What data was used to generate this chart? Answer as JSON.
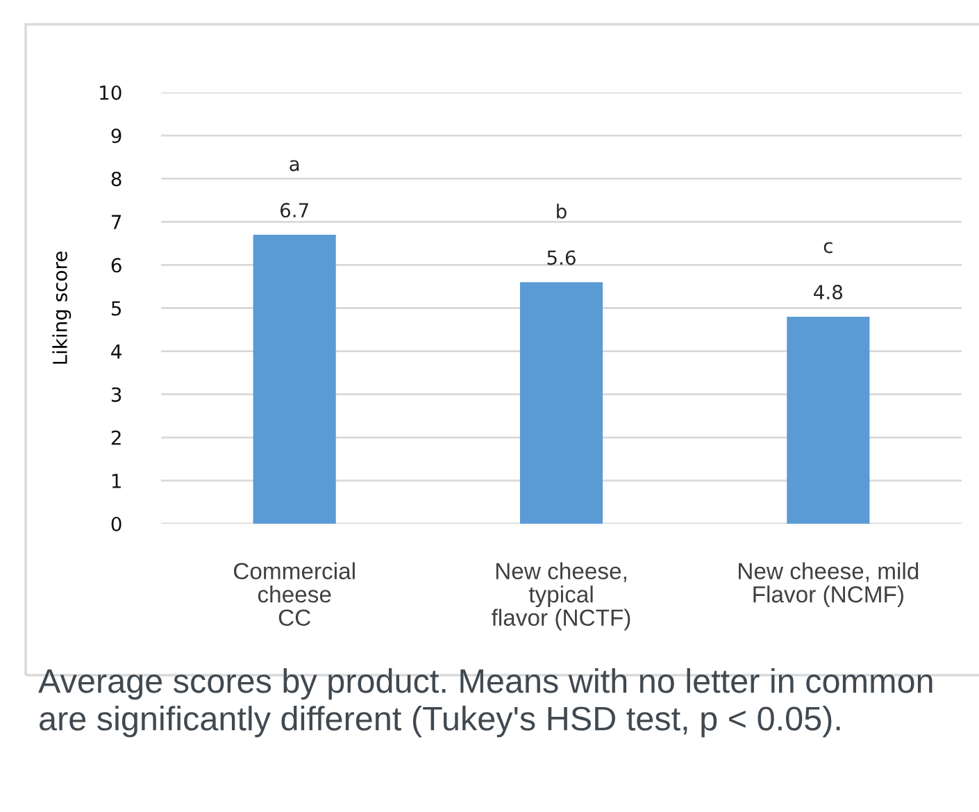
{
  "chart_data": {
    "type": "bar",
    "ylabel": "Liking score",
    "categories": [
      "Commercial\ncheese\nCC",
      "New cheese,\ntypical\nflavor (NCTF)",
      "New cheese, mild\nFlavor (NCMF)"
    ],
    "values": [
      6.7,
      5.6,
      4.8
    ],
    "color": "#5b9bd5",
    "ylim": [
      0,
      10
    ],
    "yticks": [
      0,
      1,
      2,
      3,
      4,
      5,
      6,
      7,
      8,
      9,
      10
    ],
    "grid": "y",
    "data_labels": true,
    "annotations": [
      "a",
      "b",
      "c",
      "Average scores by product. Means with no letter in common are significantly different (Tukey's HSD test, p < 0.05)."
    ]
  }
}
